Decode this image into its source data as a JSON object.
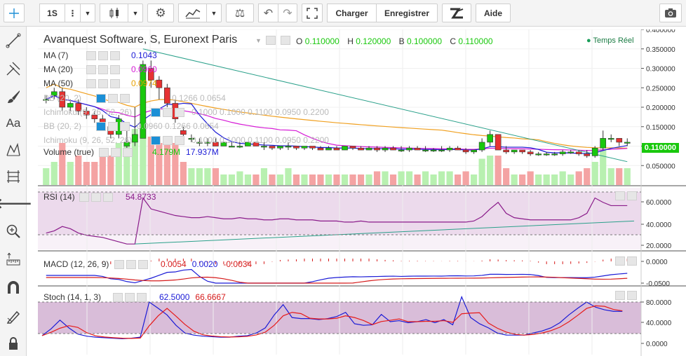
{
  "toolbar": {
    "interval": "1S",
    "load_label": "Charger",
    "save_label": "Enregistrer",
    "help_label": "Aide"
  },
  "header": {
    "title": "Avanquest Software, S, Euronext Paris",
    "o_label": "O",
    "o_value": "0.110000",
    "h_label": "H",
    "h_value": "0.120000",
    "b_label": "B",
    "b_value": "0.100000",
    "c_label": "C",
    "c_value": "0.110000",
    "realtime_label": "Temps Réel",
    "last_price": "0.110000"
  },
  "legend": {
    "ma7_label": "MA (7)",
    "ma7_value": "0.1043",
    "ma20_label": "MA (20)",
    "ma20_value": "0.0960",
    "ma50_label": "MA (50)",
    "ma50_value": "0.0974",
    "bb_label": "BB (20, 2)",
    "bb_values": "0.1266   0.0654",
    "ichi_label": "Ichimoku (9, 26, 52, 26)",
    "ichi_values": "0.1000   0.1000   0.1100   0.0950   0.2200",
    "bb2_label": "BB (20, 2)",
    "bb2_values": "0.0960   0.1266   0.0654",
    "ichi2_label": "Ichimoku (9, 26, 52, 26)",
    "ichi2_values": "0.1000   0.1000   0.1100   0.0950   0.2200",
    "volume_label": "Volume (true)",
    "volume_value": "4.179M",
    "volume_value2": "17.937M",
    "rsi_label": "RSI (14)",
    "rsi_value": "54.8733",
    "macd_label": "MACD (12, 26, 9)",
    "macd_v1": "0.0054",
    "macd_v2": "0.0020",
    "macd_v3": "-0.0034",
    "stoch_label": "Stoch (14, 1, 3)",
    "stoch_k": "62.5000",
    "stoch_d": "66.6667"
  },
  "axes": {
    "price_ticks": [
      "0.400000",
      "0.350000",
      "0.300000",
      "0.250000",
      "0.200000",
      "0.150000",
      "0.100000",
      "0.050000"
    ],
    "rsi_ticks": [
      "60.0000",
      "40.0000",
      "20.0000"
    ],
    "macd_ticks": [
      "0.0000",
      "-0.0500"
    ],
    "stoch_ticks": [
      "80.0000",
      "40.0000",
      "0.0000"
    ]
  },
  "chart_data": {
    "type": "candlestick",
    "price_range": [
      0.0,
      0.4
    ],
    "candles": [
      [
        0.22,
        0.23,
        0.21,
        0.22
      ],
      [
        0.23,
        0.25,
        0.22,
        0.24
      ],
      [
        0.24,
        0.25,
        0.19,
        0.2
      ],
      [
        0.2,
        0.22,
        0.19,
        0.21
      ],
      [
        0.21,
        0.22,
        0.18,
        0.19
      ],
      [
        0.19,
        0.2,
        0.17,
        0.18
      ],
      [
        0.18,
        0.19,
        0.16,
        0.17
      ],
      [
        0.17,
        0.18,
        0.14,
        0.15
      ],
      [
        0.15,
        0.16,
        0.12,
        0.13
      ],
      [
        0.13,
        0.18,
        0.12,
        0.17
      ],
      [
        0.1,
        0.15,
        0.09,
        0.11
      ],
      [
        0.11,
        0.2,
        0.1,
        0.13
      ],
      [
        0.12,
        0.32,
        0.12,
        0.31
      ],
      [
        0.3,
        0.32,
        0.25,
        0.27
      ],
      [
        0.27,
        0.28,
        0.22,
        0.25
      ],
      [
        0.25,
        0.26,
        0.2,
        0.21
      ],
      [
        0.21,
        0.22,
        0.16,
        0.17
      ],
      [
        0.14,
        0.15,
        0.12,
        0.13
      ],
      [
        0.12,
        0.13,
        0.11,
        0.12
      ],
      [
        0.11,
        0.12,
        0.1,
        0.11
      ],
      [
        0.11,
        0.12,
        0.1,
        0.11
      ],
      [
        0.11,
        0.12,
        0.1,
        0.1
      ],
      [
        0.1,
        0.11,
        0.1,
        0.11
      ],
      [
        0.1,
        0.11,
        0.1,
        0.1
      ],
      [
        0.1,
        0.11,
        0.095,
        0.1
      ],
      [
        0.1,
        0.11,
        0.1,
        0.11
      ],
      [
        0.11,
        0.11,
        0.1,
        0.1
      ],
      [
        0.1,
        0.11,
        0.09,
        0.1
      ],
      [
        0.1,
        0.1,
        0.09,
        0.095
      ],
      [
        0.095,
        0.1,
        0.09,
        0.1
      ],
      [
        0.1,
        0.11,
        0.09,
        0.1
      ],
      [
        0.1,
        0.1,
        0.09,
        0.095
      ],
      [
        0.095,
        0.1,
        0.09,
        0.1
      ],
      [
        0.1,
        0.1,
        0.09,
        0.095
      ],
      [
        0.095,
        0.1,
        0.09,
        0.09
      ],
      [
        0.09,
        0.1,
        0.09,
        0.095
      ],
      [
        0.095,
        0.1,
        0.09,
        0.09
      ],
      [
        0.09,
        0.1,
        0.09,
        0.1
      ],
      [
        0.1,
        0.1,
        0.09,
        0.095
      ],
      [
        0.095,
        0.1,
        0.09,
        0.09
      ],
      [
        0.09,
        0.1,
        0.09,
        0.095
      ],
      [
        0.095,
        0.1,
        0.085,
        0.09
      ],
      [
        0.09,
        0.1,
        0.085,
        0.095
      ],
      [
        0.095,
        0.1,
        0.09,
        0.09
      ],
      [
        0.09,
        0.1,
        0.085,
        0.09
      ],
      [
        0.09,
        0.1,
        0.085,
        0.095
      ],
      [
        0.095,
        0.1,
        0.09,
        0.09
      ],
      [
        0.09,
        0.1,
        0.085,
        0.09
      ],
      [
        0.09,
        0.095,
        0.085,
        0.09
      ],
      [
        0.09,
        0.1,
        0.085,
        0.09
      ],
      [
        0.09,
        0.1,
        0.085,
        0.095
      ],
      [
        0.095,
        0.1,
        0.09,
        0.09
      ],
      [
        0.09,
        0.095,
        0.08,
        0.085
      ],
      [
        0.085,
        0.09,
        0.08,
        0.09
      ],
      [
        0.09,
        0.12,
        0.085,
        0.11
      ],
      [
        0.11,
        0.14,
        0.1,
        0.13
      ],
      [
        0.13,
        0.13,
        0.09,
        0.09
      ],
      [
        0.09,
        0.1,
        0.08,
        0.085
      ],
      [
        0.085,
        0.09,
        0.08,
        0.09
      ],
      [
        0.09,
        0.09,
        0.08,
        0.085
      ],
      [
        0.085,
        0.09,
        0.075,
        0.08
      ],
      [
        0.08,
        0.085,
        0.075,
        0.08
      ],
      [
        0.08,
        0.085,
        0.075,
        0.08
      ],
      [
        0.08,
        0.085,
        0.075,
        0.08
      ],
      [
        0.08,
        0.09,
        0.075,
        0.085
      ],
      [
        0.085,
        0.09,
        0.08,
        0.085
      ],
      [
        0.085,
        0.09,
        0.075,
        0.08
      ],
      [
        0.08,
        0.09,
        0.07,
        0.075
      ],
      [
        0.075,
        0.1,
        0.07,
        0.095
      ],
      [
        0.095,
        0.14,
        0.09,
        0.12
      ],
      [
        0.12,
        0.13,
        0.11,
        0.12
      ],
      [
        0.12,
        0.12,
        0.1,
        0.11
      ],
      [
        0.11,
        0.12,
        0.1,
        0.11
      ]
    ],
    "volume_scale": "relative",
    "rsi": [
      30,
      32,
      36,
      34,
      30,
      28,
      27,
      26,
      24,
      22,
      20,
      20,
      62,
      52,
      50,
      48,
      46,
      45,
      44,
      44,
      45,
      44,
      43,
      43,
      44,
      43,
      43,
      42,
      42,
      43,
      43,
      42,
      42,
      42,
      41,
      41,
      41,
      40,
      40,
      41,
      40,
      40,
      40,
      40,
      40,
      40,
      40,
      40,
      40,
      40,
      40,
      40,
      40,
      41,
      45,
      52,
      58,
      48,
      44,
      43,
      42,
      42,
      42,
      42,
      42,
      42,
      44,
      48,
      62,
      58,
      55,
      55,
      55
    ],
    "stoch_k": [
      15,
      28,
      45,
      30,
      18,
      14,
      12,
      11,
      10,
      9,
      10,
      12,
      80,
      68,
      55,
      35,
      20,
      16,
      14,
      13,
      12,
      12,
      14,
      15,
      20,
      30,
      55,
      75,
      50,
      48,
      48,
      46,
      48,
      52,
      60,
      38,
      35,
      36,
      56,
      42,
      44,
      40,
      42,
      46,
      40,
      46,
      36,
      90,
      50,
      38,
      30,
      20,
      16,
      16,
      16,
      20,
      24,
      30,
      40,
      55,
      68,
      80,
      70,
      65,
      62,
      62
    ]
  }
}
